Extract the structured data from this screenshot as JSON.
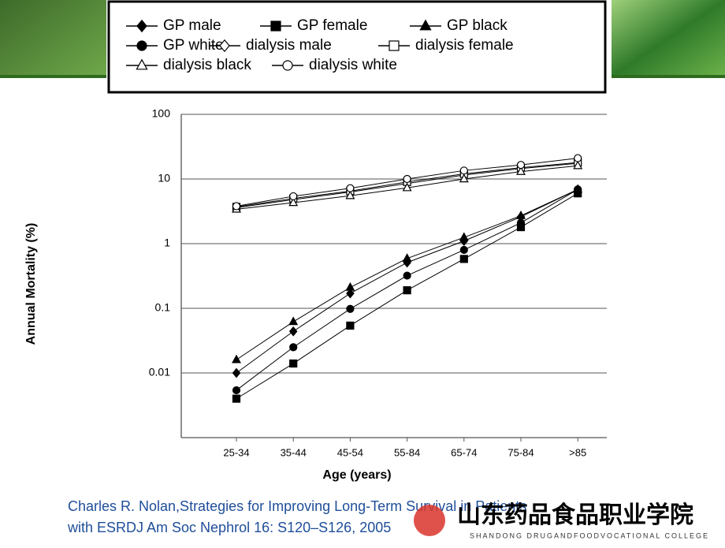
{
  "chart_data": {
    "type": "line",
    "x_label": "Age (years)",
    "y_label": "Annual Mortality (%)",
    "categories": [
      "25-34",
      "35-44",
      "45-54",
      "55-84",
      "65-74",
      "75-84",
      ">85"
    ],
    "ylim": [
      0.001,
      100
    ],
    "yticks": [
      100,
      10,
      1,
      0.1,
      0.01
    ],
    "log_y": true,
    "grid": true,
    "series": [
      {
        "name": "GP male",
        "color": "#000000",
        "marker": "diamond",
        "filled": true,
        "values": [
          0.01,
          0.044,
          0.17,
          0.51,
          1.1,
          2.6,
          6.9
        ]
      },
      {
        "name": "GP female",
        "color": "#000000",
        "marker": "square",
        "filled": true,
        "values": [
          0.004,
          0.014,
          0.054,
          0.19,
          0.58,
          1.8,
          6
        ]
      },
      {
        "name": "GP black",
        "color": "#000000",
        "marker": "triangle",
        "filled": true,
        "values": [
          0.016,
          0.062,
          0.21,
          0.59,
          1.25,
          2.7,
          6.9
        ]
      },
      {
        "name": "GP white",
        "color": "#000000",
        "marker": "circle",
        "filled": true,
        "values": [
          0.0054,
          0.025,
          0.098,
          0.32,
          0.8,
          2.1,
          6.9
        ]
      },
      {
        "name": "dialysis male",
        "color": "#000000",
        "marker": "diamond",
        "filled": false,
        "values": [
          3.6,
          4.8,
          6.3,
          8.5,
          11.5,
          14.5,
          17.5
        ]
      },
      {
        "name": "dialysis female",
        "color": "#000000",
        "marker": "square",
        "filled": false,
        "values": [
          3.7,
          5,
          6.5,
          9,
          12,
          15,
          18
        ]
      },
      {
        "name": "dialysis black",
        "color": "#000000",
        "marker": "triangle",
        "filled": false,
        "values": [
          3.4,
          4.3,
          5.5,
          7.3,
          10,
          13,
          16
        ]
      },
      {
        "name": "dialysis white",
        "color": "#000000",
        "marker": "circle",
        "filled": false,
        "values": [
          3.8,
          5.4,
          7.2,
          10,
          13.5,
          16.5,
          21
        ]
      }
    ]
  },
  "footer": {
    "citation": [
      "Charles R. Nolan,Strategies for Improving Long-Term Survival in Patients",
      "with ESRDJ Am Soc Nephrol 16: S120–S126, 2005"
    ],
    "logo_name": "山东药品食品职业学院",
    "logo_subtitle": "SHANDONG DRUGANDFOODVOCATIONAL COLLEGE"
  }
}
